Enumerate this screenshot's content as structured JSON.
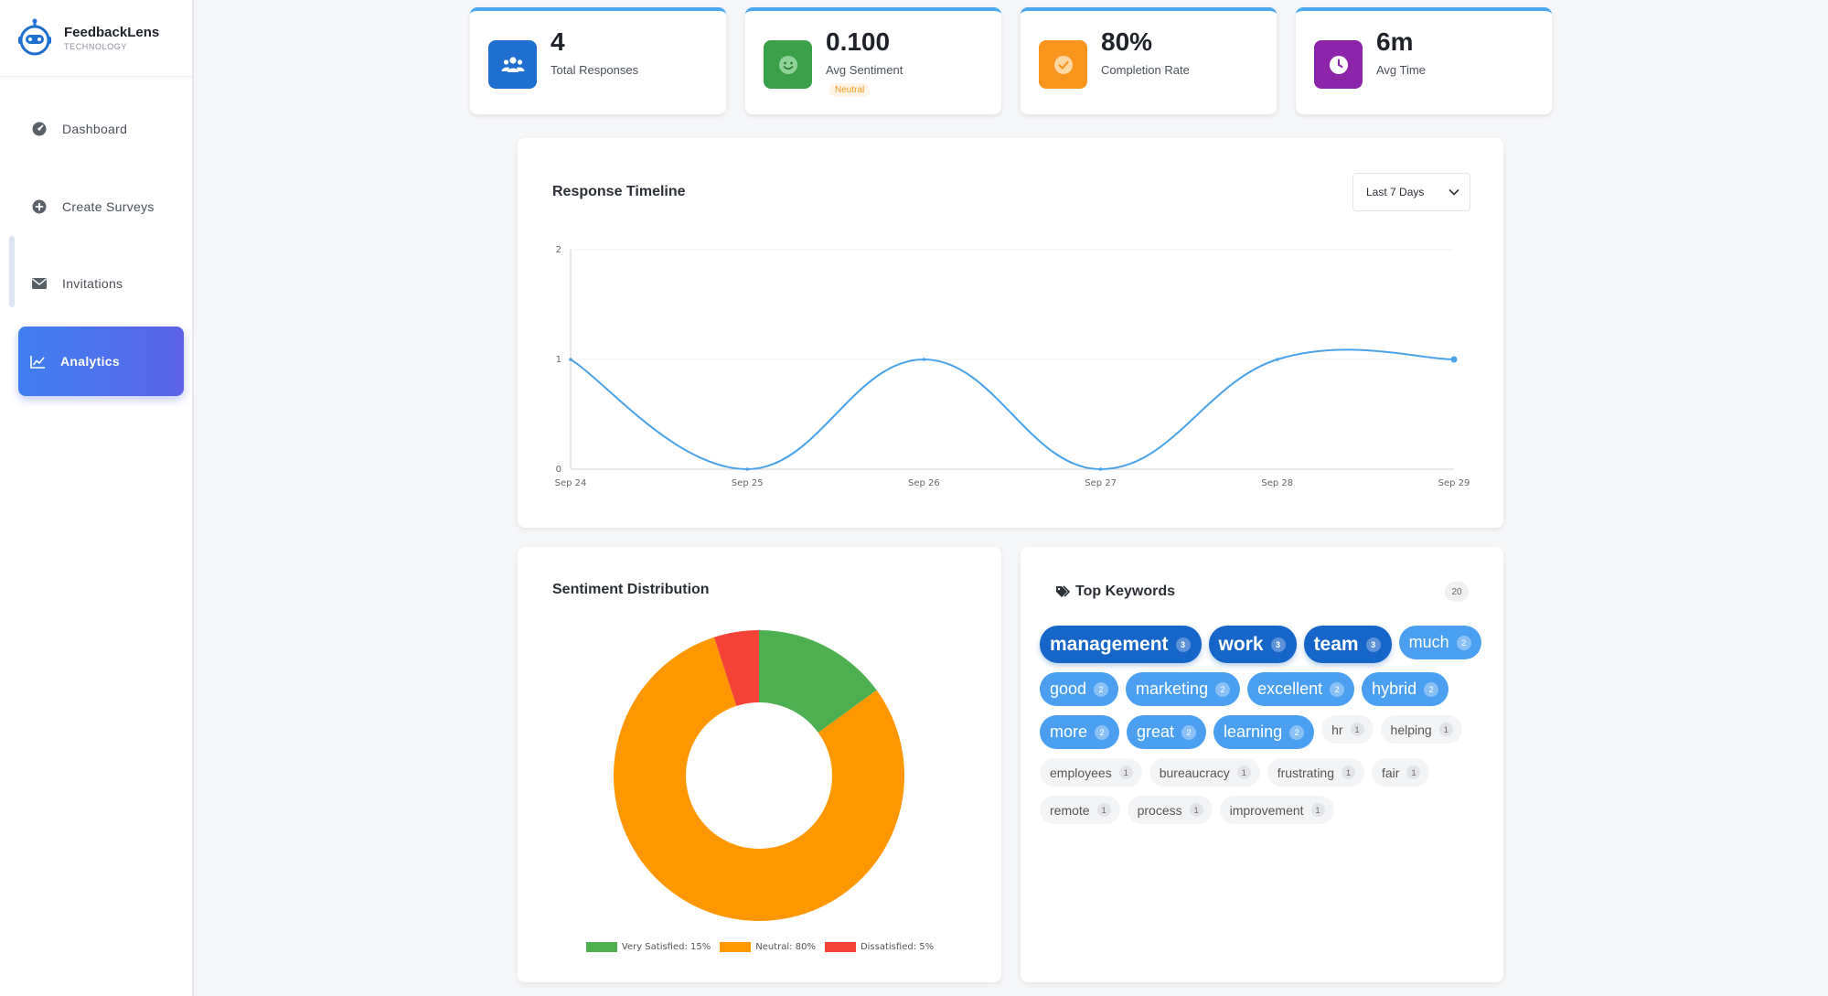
{
  "brand": {
    "name": "FeedbackLens",
    "subtitle": "TECHNOLOGY"
  },
  "nav": [
    {
      "label": "Dashboard",
      "icon": "gauge-icon",
      "active": false
    },
    {
      "label": "Create Surveys",
      "icon": "plus-circle-icon",
      "active": false
    },
    {
      "label": "Invitations",
      "icon": "envelope-icon",
      "active": false
    },
    {
      "label": "Analytics",
      "icon": "line-chart-icon",
      "active": true
    }
  ],
  "stats": [
    {
      "value": "4",
      "label": "Total Responses",
      "icon": "users-icon",
      "color": "#1e6fd0"
    },
    {
      "value": "0.100",
      "label": "Avg Sentiment",
      "badge": "Neutral",
      "icon": "smile-icon",
      "color": "#3aa04a"
    },
    {
      "value": "80%",
      "label": "Completion Rate",
      "icon": "check-circle-icon",
      "color": "#f8951d"
    },
    {
      "value": "6m",
      "label": "Avg Time",
      "icon": "clock-icon",
      "color": "#8e24aa"
    }
  ],
  "timeline": {
    "title": "Response Timeline",
    "range_select": "Last 7 Days"
  },
  "sentiment": {
    "title": "Sentiment Distribution"
  },
  "keywords": {
    "title": "Top Keywords",
    "count": "20",
    "icon": "tags-icon",
    "items": [
      {
        "word": "management",
        "count": "3",
        "tier": "t1"
      },
      {
        "word": "work",
        "count": "3",
        "tier": "t1"
      },
      {
        "word": "team",
        "count": "3",
        "tier": "t1"
      },
      {
        "word": "much",
        "count": "2",
        "tier": "t2"
      },
      {
        "word": "good",
        "count": "2",
        "tier": "t2"
      },
      {
        "word": "marketing",
        "count": "2",
        "tier": "t2"
      },
      {
        "word": "excellent",
        "count": "2",
        "tier": "t2"
      },
      {
        "word": "hybrid",
        "count": "2",
        "tier": "t2"
      },
      {
        "word": "more",
        "count": "2",
        "tier": "t2"
      },
      {
        "word": "great",
        "count": "2",
        "tier": "t2"
      },
      {
        "word": "learning",
        "count": "2",
        "tier": "t2"
      },
      {
        "word": "hr",
        "count": "1",
        "tier": "t3"
      },
      {
        "word": "helping",
        "count": "1",
        "tier": "t3"
      },
      {
        "word": "employees",
        "count": "1",
        "tier": "t3"
      },
      {
        "word": "bureaucracy",
        "count": "1",
        "tier": "t3"
      },
      {
        "word": "frustrating",
        "count": "1",
        "tier": "t3"
      },
      {
        "word": "fair",
        "count": "1",
        "tier": "t3"
      },
      {
        "word": "remote",
        "count": "1",
        "tier": "t3"
      },
      {
        "word": "process",
        "count": "1",
        "tier": "t3"
      },
      {
        "word": "improvement",
        "count": "1",
        "tier": "t3"
      }
    ]
  },
  "chart_data": [
    {
      "type": "line",
      "title": "Response Timeline",
      "categories": [
        "Sep 24",
        "Sep 25",
        "Sep 26",
        "Sep 27",
        "Sep 28",
        "Sep 29"
      ],
      "series": [
        {
          "values": [
            1,
            0,
            1,
            0,
            1,
            1
          ]
        }
      ],
      "ylim": [
        0,
        2
      ],
      "yticks": [
        "0",
        "1",
        "2"
      ],
      "line_color": "#4aa3ea",
      "grid": true
    },
    {
      "type": "pie",
      "title": "Sentiment Distribution",
      "donut": true,
      "slices": [
        {
          "label": "Very Satisfied: 15%",
          "value": 15,
          "color": "#4caf50"
        },
        {
          "label": "Neutral: 80%",
          "value": 80,
          "color": "#ff9800"
        },
        {
          "label": "Dissatisfied: 5%",
          "value": 5,
          "color": "#f44336"
        }
      ],
      "legend": "bottom"
    }
  ]
}
